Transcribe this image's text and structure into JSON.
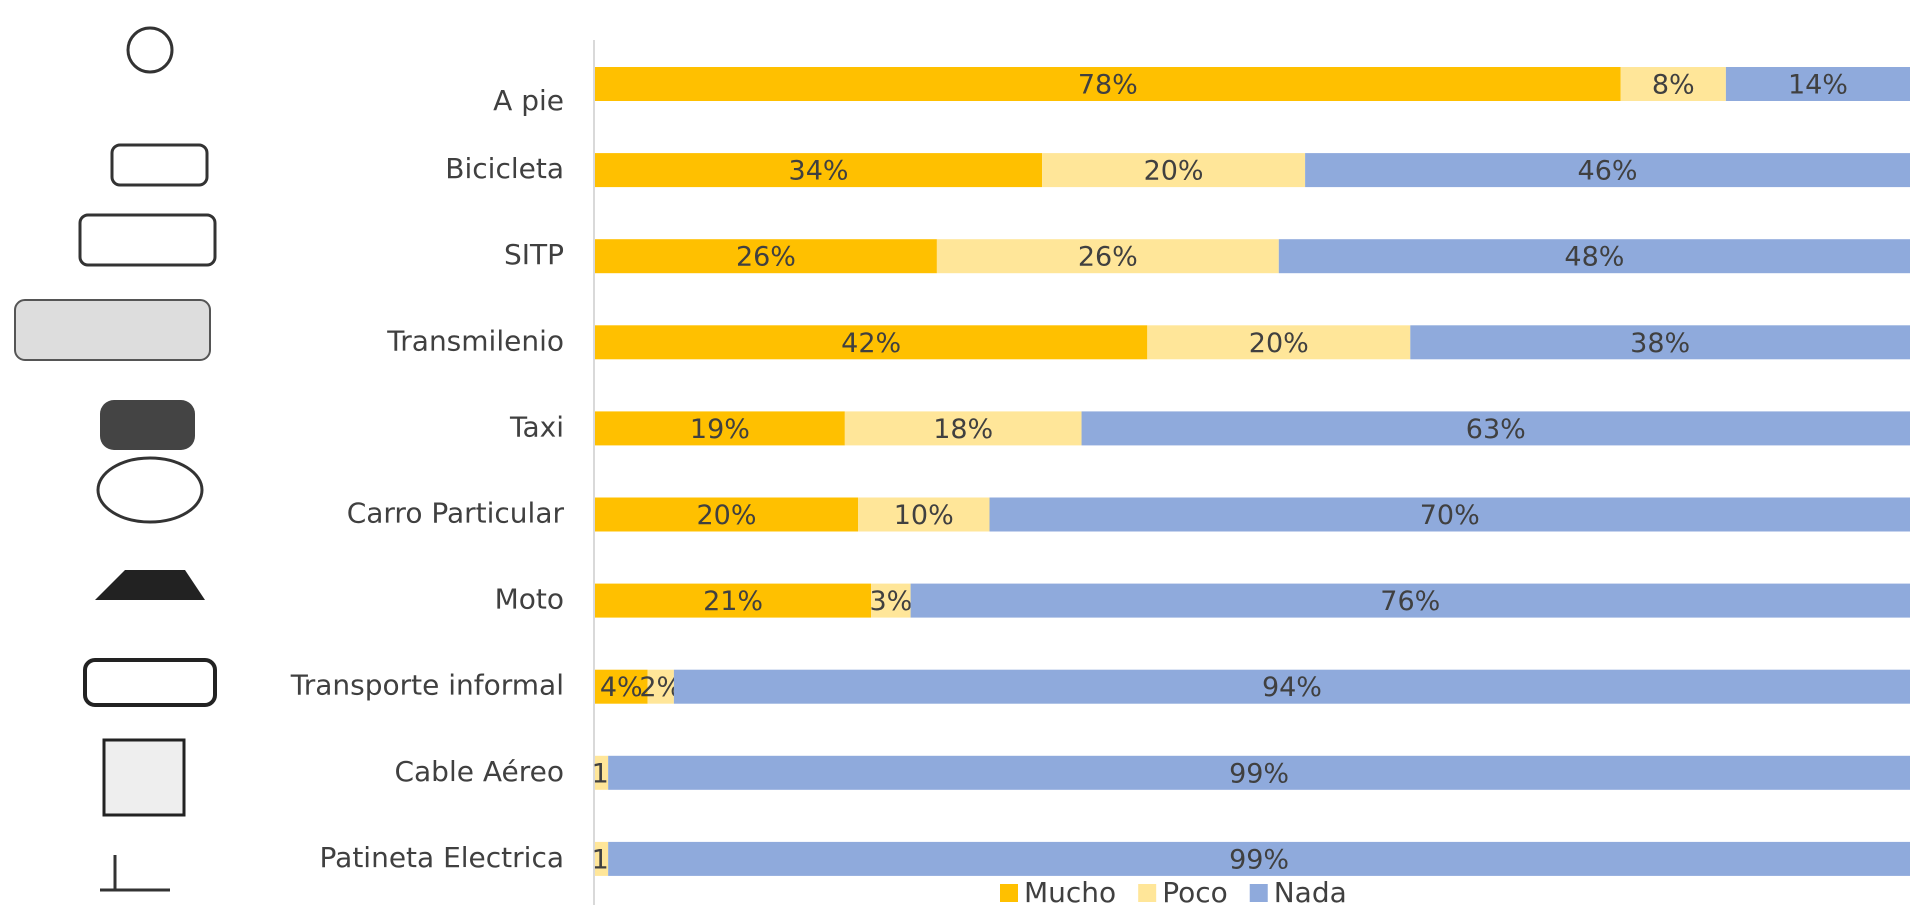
{
  "chart_data": {
    "type": "stacked-bar",
    "categories": [
      "A pie",
      "Bicicleta",
      "SITP",
      "Transmilenio",
      "Taxi",
      "Carro Particular",
      "Moto",
      "Transporte informal",
      "Cable Aéreo",
      "Patineta Electrica"
    ],
    "series": [
      {
        "name": "Mucho",
        "color": "#ffc000",
        "values": [
          78,
          34,
          26,
          42,
          19,
          20,
          21,
          4,
          0,
          0
        ],
        "value_labels": [
          "78%",
          "34%",
          "26%",
          "42%",
          "19%",
          "20%",
          "21%",
          "4%",
          null,
          null
        ]
      },
      {
        "name": "Poco",
        "color": "#ffe699",
        "values": [
          8,
          20,
          26,
          20,
          18,
          10,
          3,
          2,
          1,
          1
        ],
        "value_labels": [
          "8%",
          "20%",
          "26%",
          "20%",
          "18%",
          "10%",
          "3%",
          "2%",
          "1%",
          "1%"
        ]
      },
      {
        "name": "Nada",
        "color": "#8faadc",
        "values": [
          14,
          46,
          48,
          38,
          63,
          70,
          76,
          94,
          99,
          99
        ],
        "value_labels": [
          "14%",
          "46%",
          "48%",
          "38%",
          "63%",
          "70%",
          "76%",
          "94%",
          "99%",
          "99%"
        ]
      }
    ],
    "xlim": [
      0,
      100
    ],
    "legend": "bottom"
  }
}
